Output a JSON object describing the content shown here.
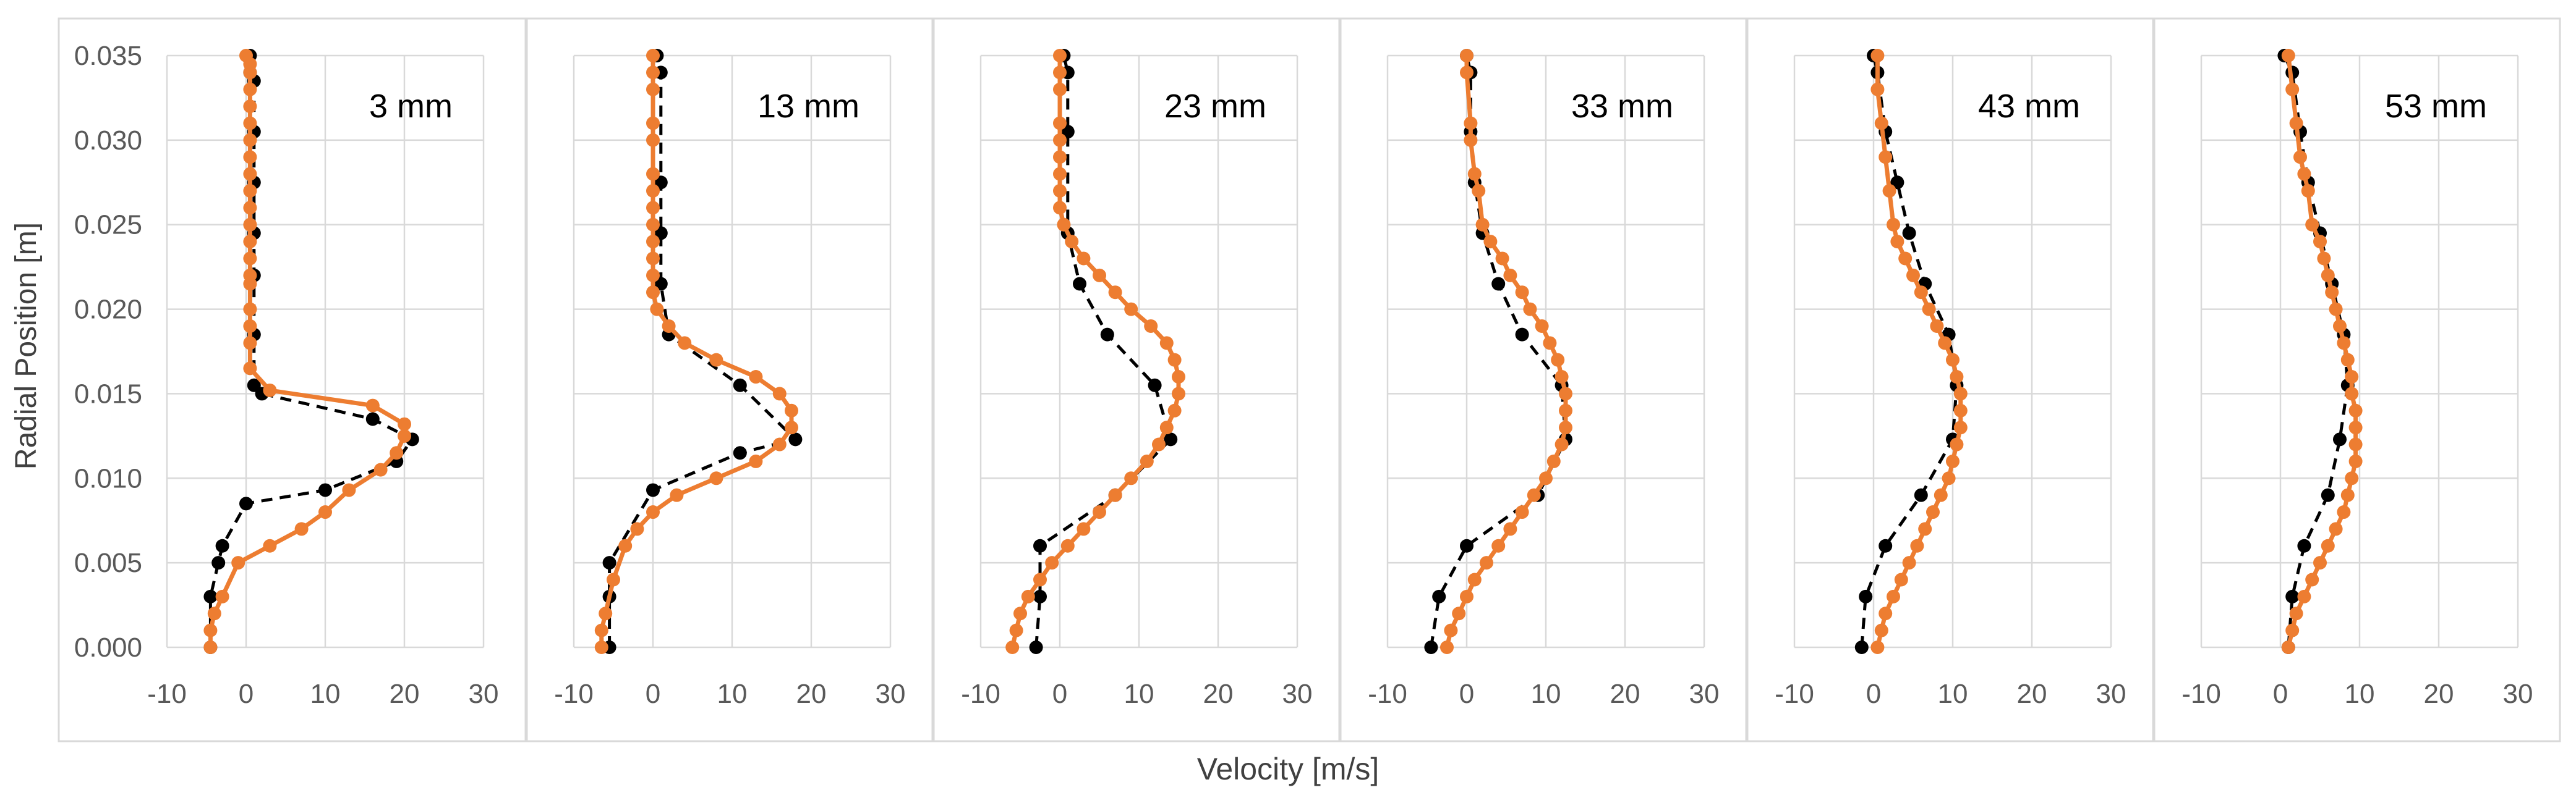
{
  "figure": {
    "ylabel": "Radial Position [m]",
    "xlabel": "Velocity [m/s]"
  },
  "colors": {
    "series_measured": "#000000",
    "series_simulated": "#ED7D31",
    "grid": "#D9D9D9",
    "tick_text": "#595959"
  },
  "chart_data": [
    {
      "type": "line",
      "title": "3 mm",
      "xlim": [
        -10,
        30
      ],
      "ylim": [
        0,
        0.035
      ],
      "xticks": [
        "-10",
        "0",
        "10",
        "20",
        "30"
      ],
      "yticks": [
        "0.000",
        "0.005",
        "0.010",
        "0.015",
        "0.020",
        "0.025",
        "0.030",
        "0.035"
      ],
      "grid": true,
      "series": [
        {
          "style": "dashed-black-dots",
          "x": [
            -4.5,
            -4.5,
            -3.5,
            -3.0,
            0,
            10,
            19,
            21,
            16,
            2,
            1.0,
            1.0,
            1.0,
            1.0,
            1.0,
            1.0,
            1.0,
            0.5,
            0.5
          ],
          "y": [
            0.0,
            0.003,
            0.005,
            0.006,
            0.0085,
            0.0093,
            0.011,
            0.0123,
            0.0135,
            0.015,
            0.0155,
            0.0185,
            0.022,
            0.0245,
            0.0275,
            0.0305,
            0.0335,
            0.034,
            0.035
          ]
        },
        {
          "style": "solid-orange-dots",
          "x": [
            -4.5,
            -4.5,
            -4,
            -3,
            -1,
            3,
            7,
            10,
            13,
            17,
            19,
            20,
            20,
            16,
            3,
            0.5,
            0.5,
            0.5,
            0.5,
            0.5,
            0.5,
            0.5,
            0.5,
            0.5,
            0.5,
            0.5,
            0.5,
            0.5,
            0.5,
            0.5,
            0.5,
            0.5,
            0.5,
            0.5,
            0
          ],
          "y": [
            0.0,
            0.001,
            0.002,
            0.003,
            0.005,
            0.006,
            0.007,
            0.008,
            0.0093,
            0.0105,
            0.0115,
            0.0125,
            0.0132,
            0.0143,
            0.0152,
            0.0165,
            0.018,
            0.019,
            0.02,
            0.0215,
            0.022,
            0.023,
            0.024,
            0.025,
            0.026,
            0.027,
            0.028,
            0.029,
            0.03,
            0.031,
            0.032,
            0.033,
            0.034,
            0.0345,
            0.035
          ]
        }
      ]
    },
    {
      "type": "line",
      "title": "13 mm",
      "xlim": [
        -10,
        30
      ],
      "ylim": [
        0,
        0.035
      ],
      "xticks": [
        "-10",
        "0",
        "10",
        "20",
        "30"
      ],
      "yticks": [],
      "grid": true,
      "series": [
        {
          "style": "dashed-black-dots",
          "x": [
            -5.5,
            -5.5,
            -5.5,
            0,
            11,
            18,
            11,
            2,
            1.0,
            1.0,
            1.0,
            1.0,
            0.5
          ],
          "y": [
            0.0,
            0.003,
            0.005,
            0.0093,
            0.0115,
            0.0123,
            0.0155,
            0.0185,
            0.0215,
            0.0245,
            0.0275,
            0.034,
            0.035
          ]
        },
        {
          "style": "solid-orange-dots",
          "x": [
            -6.5,
            -6.5,
            -6.0,
            -5.0,
            -3.5,
            -2.0,
            0.0,
            3.0,
            8.0,
            13.0,
            16.0,
            17.5,
            17.5,
            16.0,
            13.0,
            8.0,
            4.0,
            2.0,
            0.5,
            0.0,
            0.0,
            0.0,
            0.0,
            0.0,
            0.0,
            0.0,
            0.0,
            0.0,
            0.0,
            0.0,
            0.0,
            0.0
          ],
          "y": [
            0.0,
            0.001,
            0.002,
            0.004,
            0.006,
            0.007,
            0.008,
            0.009,
            0.01,
            0.011,
            0.012,
            0.013,
            0.014,
            0.015,
            0.016,
            0.017,
            0.018,
            0.019,
            0.02,
            0.021,
            0.022,
            0.023,
            0.024,
            0.025,
            0.026,
            0.027,
            0.028,
            0.03,
            0.031,
            0.033,
            0.034,
            0.035
          ]
        }
      ]
    },
    {
      "type": "line",
      "title": "23 mm",
      "xlim": [
        -10,
        30
      ],
      "ylim": [
        0,
        0.035
      ],
      "xticks": [
        "-10",
        "0",
        "10",
        "20",
        "30"
      ],
      "yticks": [],
      "grid": true,
      "series": [
        {
          "style": "dashed-black-dots",
          "x": [
            -3.0,
            -2.5,
            -2.5,
            7,
            14,
            12,
            6,
            2.5,
            1.0,
            1.0,
            1.0,
            0.5
          ],
          "y": [
            0.0,
            0.003,
            0.006,
            0.009,
            0.0123,
            0.0155,
            0.0185,
            0.0215,
            0.0245,
            0.0305,
            0.034,
            0.035
          ]
        },
        {
          "style": "solid-orange-dots",
          "x": [
            -6.0,
            -5.5,
            -5.0,
            -4.0,
            -2.5,
            -1.0,
            1.0,
            3.0,
            5.0,
            7.0,
            9.0,
            11.0,
            12.5,
            13.5,
            14.5,
            15.0,
            15.0,
            14.5,
            13.5,
            11.5,
            9.0,
            7.0,
            5.0,
            3.0,
            1.5,
            0.5,
            0.0,
            0.0,
            0.0,
            0.0,
            0.0,
            0.0,
            0.0,
            0.0,
            0.0
          ],
          "y": [
            0.0,
            0.001,
            0.002,
            0.003,
            0.004,
            0.005,
            0.006,
            0.007,
            0.008,
            0.009,
            0.01,
            0.011,
            0.012,
            0.013,
            0.014,
            0.015,
            0.016,
            0.017,
            0.018,
            0.019,
            0.02,
            0.021,
            0.022,
            0.023,
            0.024,
            0.025,
            0.026,
            0.027,
            0.028,
            0.029,
            0.03,
            0.031,
            0.033,
            0.034,
            0.035
          ]
        }
      ]
    },
    {
      "type": "line",
      "title": "33 mm",
      "xlim": [
        -10,
        30
      ],
      "ylim": [
        0,
        0.035
      ],
      "xticks": [
        "-10",
        "0",
        "10",
        "20",
        "30"
      ],
      "yticks": [],
      "grid": true,
      "series": [
        {
          "style": "dashed-black-dots",
          "x": [
            -4.5,
            -3.5,
            0,
            9,
            12.5,
            12,
            7,
            4,
            2,
            1.0,
            0.5,
            0.5,
            0
          ],
          "y": [
            0.0,
            0.003,
            0.006,
            0.009,
            0.0123,
            0.0155,
            0.0185,
            0.0215,
            0.0245,
            0.0275,
            0.0305,
            0.034,
            0.035
          ]
        },
        {
          "style": "solid-orange-dots",
          "x": [
            -2.5,
            -2.0,
            -1.0,
            0.0,
            1.0,
            2.5,
            4.0,
            5.5,
            7.0,
            8.5,
            10.0,
            11.0,
            12.0,
            12.5,
            12.5,
            12.5,
            12.0,
            11.5,
            10.5,
            9.5,
            8.0,
            7.0,
            5.5,
            4.5,
            3.0,
            2.0,
            1.5,
            1.0,
            0.5,
            0.5,
            0.0,
            0.0
          ],
          "y": [
            0.0,
            0.001,
            0.002,
            0.003,
            0.004,
            0.005,
            0.006,
            0.007,
            0.008,
            0.009,
            0.01,
            0.011,
            0.012,
            0.013,
            0.014,
            0.015,
            0.016,
            0.017,
            0.018,
            0.019,
            0.02,
            0.021,
            0.022,
            0.023,
            0.024,
            0.025,
            0.027,
            0.028,
            0.03,
            0.031,
            0.034,
            0.035
          ]
        }
      ]
    },
    {
      "type": "line",
      "title": "43 mm",
      "xlim": [
        -10,
        30
      ],
      "ylim": [
        0,
        0.035
      ],
      "xticks": [
        "-10",
        "0",
        "10",
        "20",
        "30"
      ],
      "yticks": [],
      "grid": true,
      "series": [
        {
          "style": "dashed-black-dots",
          "x": [
            -1.5,
            -1.0,
            1.5,
            6.0,
            10.0,
            10.5,
            9.5,
            6.5,
            4.5,
            3.0,
            1.5,
            0.5,
            0.0
          ],
          "y": [
            0.0,
            0.003,
            0.006,
            0.009,
            0.0123,
            0.0155,
            0.0185,
            0.0215,
            0.0245,
            0.0275,
            0.0305,
            0.034,
            0.035
          ]
        },
        {
          "style": "solid-orange-dots",
          "x": [
            0.5,
            1.0,
            1.5,
            2.5,
            3.5,
            4.5,
            5.5,
            6.5,
            7.5,
            8.5,
            9.5,
            10.0,
            10.5,
            11.0,
            11.0,
            11.0,
            10.5,
            10.0,
            9.0,
            8.0,
            7.0,
            6.0,
            5.0,
            4.0,
            3.0,
            2.5,
            2.0,
            1.5,
            1.0,
            0.5,
            0.5
          ],
          "y": [
            0.0,
            0.001,
            0.002,
            0.003,
            0.004,
            0.005,
            0.006,
            0.007,
            0.008,
            0.009,
            0.01,
            0.011,
            0.012,
            0.013,
            0.014,
            0.015,
            0.016,
            0.017,
            0.018,
            0.019,
            0.02,
            0.021,
            0.022,
            0.023,
            0.024,
            0.025,
            0.027,
            0.029,
            0.031,
            0.033,
            0.035
          ]
        }
      ]
    },
    {
      "type": "line",
      "title": "53 mm",
      "xlim": [
        -10,
        30
      ],
      "ylim": [
        0,
        0.035
      ],
      "xticks": [
        "-10",
        "0",
        "10",
        "20",
        "30"
      ],
      "yticks": [],
      "grid": true,
      "series": [
        {
          "style": "dashed-black-dots",
          "x": [
            1.0,
            1.5,
            3.0,
            6.0,
            7.5,
            8.5,
            8.0,
            6.5,
            5.0,
            3.5,
            2.5,
            1.5,
            0.5
          ],
          "y": [
            0.0,
            0.003,
            0.006,
            0.009,
            0.0123,
            0.0155,
            0.0185,
            0.0215,
            0.0245,
            0.0275,
            0.0305,
            0.034,
            0.035
          ]
        },
        {
          "style": "solid-orange-dots",
          "x": [
            1.0,
            1.5,
            2.0,
            3.0,
            4.0,
            5.0,
            6.0,
            7.0,
            8.0,
            8.5,
            9.0,
            9.5,
            9.5,
            9.5,
            9.5,
            9.0,
            9.0,
            8.5,
            8.0,
            7.5,
            7.0,
            6.5,
            6.0,
            5.5,
            5.0,
            4.0,
            3.5,
            3.0,
            2.5,
            2.0,
            1.5,
            1.0
          ],
          "y": [
            0.0,
            0.001,
            0.002,
            0.003,
            0.004,
            0.005,
            0.006,
            0.007,
            0.008,
            0.009,
            0.01,
            0.011,
            0.012,
            0.013,
            0.014,
            0.015,
            0.016,
            0.017,
            0.018,
            0.019,
            0.02,
            0.021,
            0.022,
            0.023,
            0.024,
            0.025,
            0.027,
            0.028,
            0.029,
            0.031,
            0.033,
            0.035
          ]
        }
      ]
    }
  ]
}
